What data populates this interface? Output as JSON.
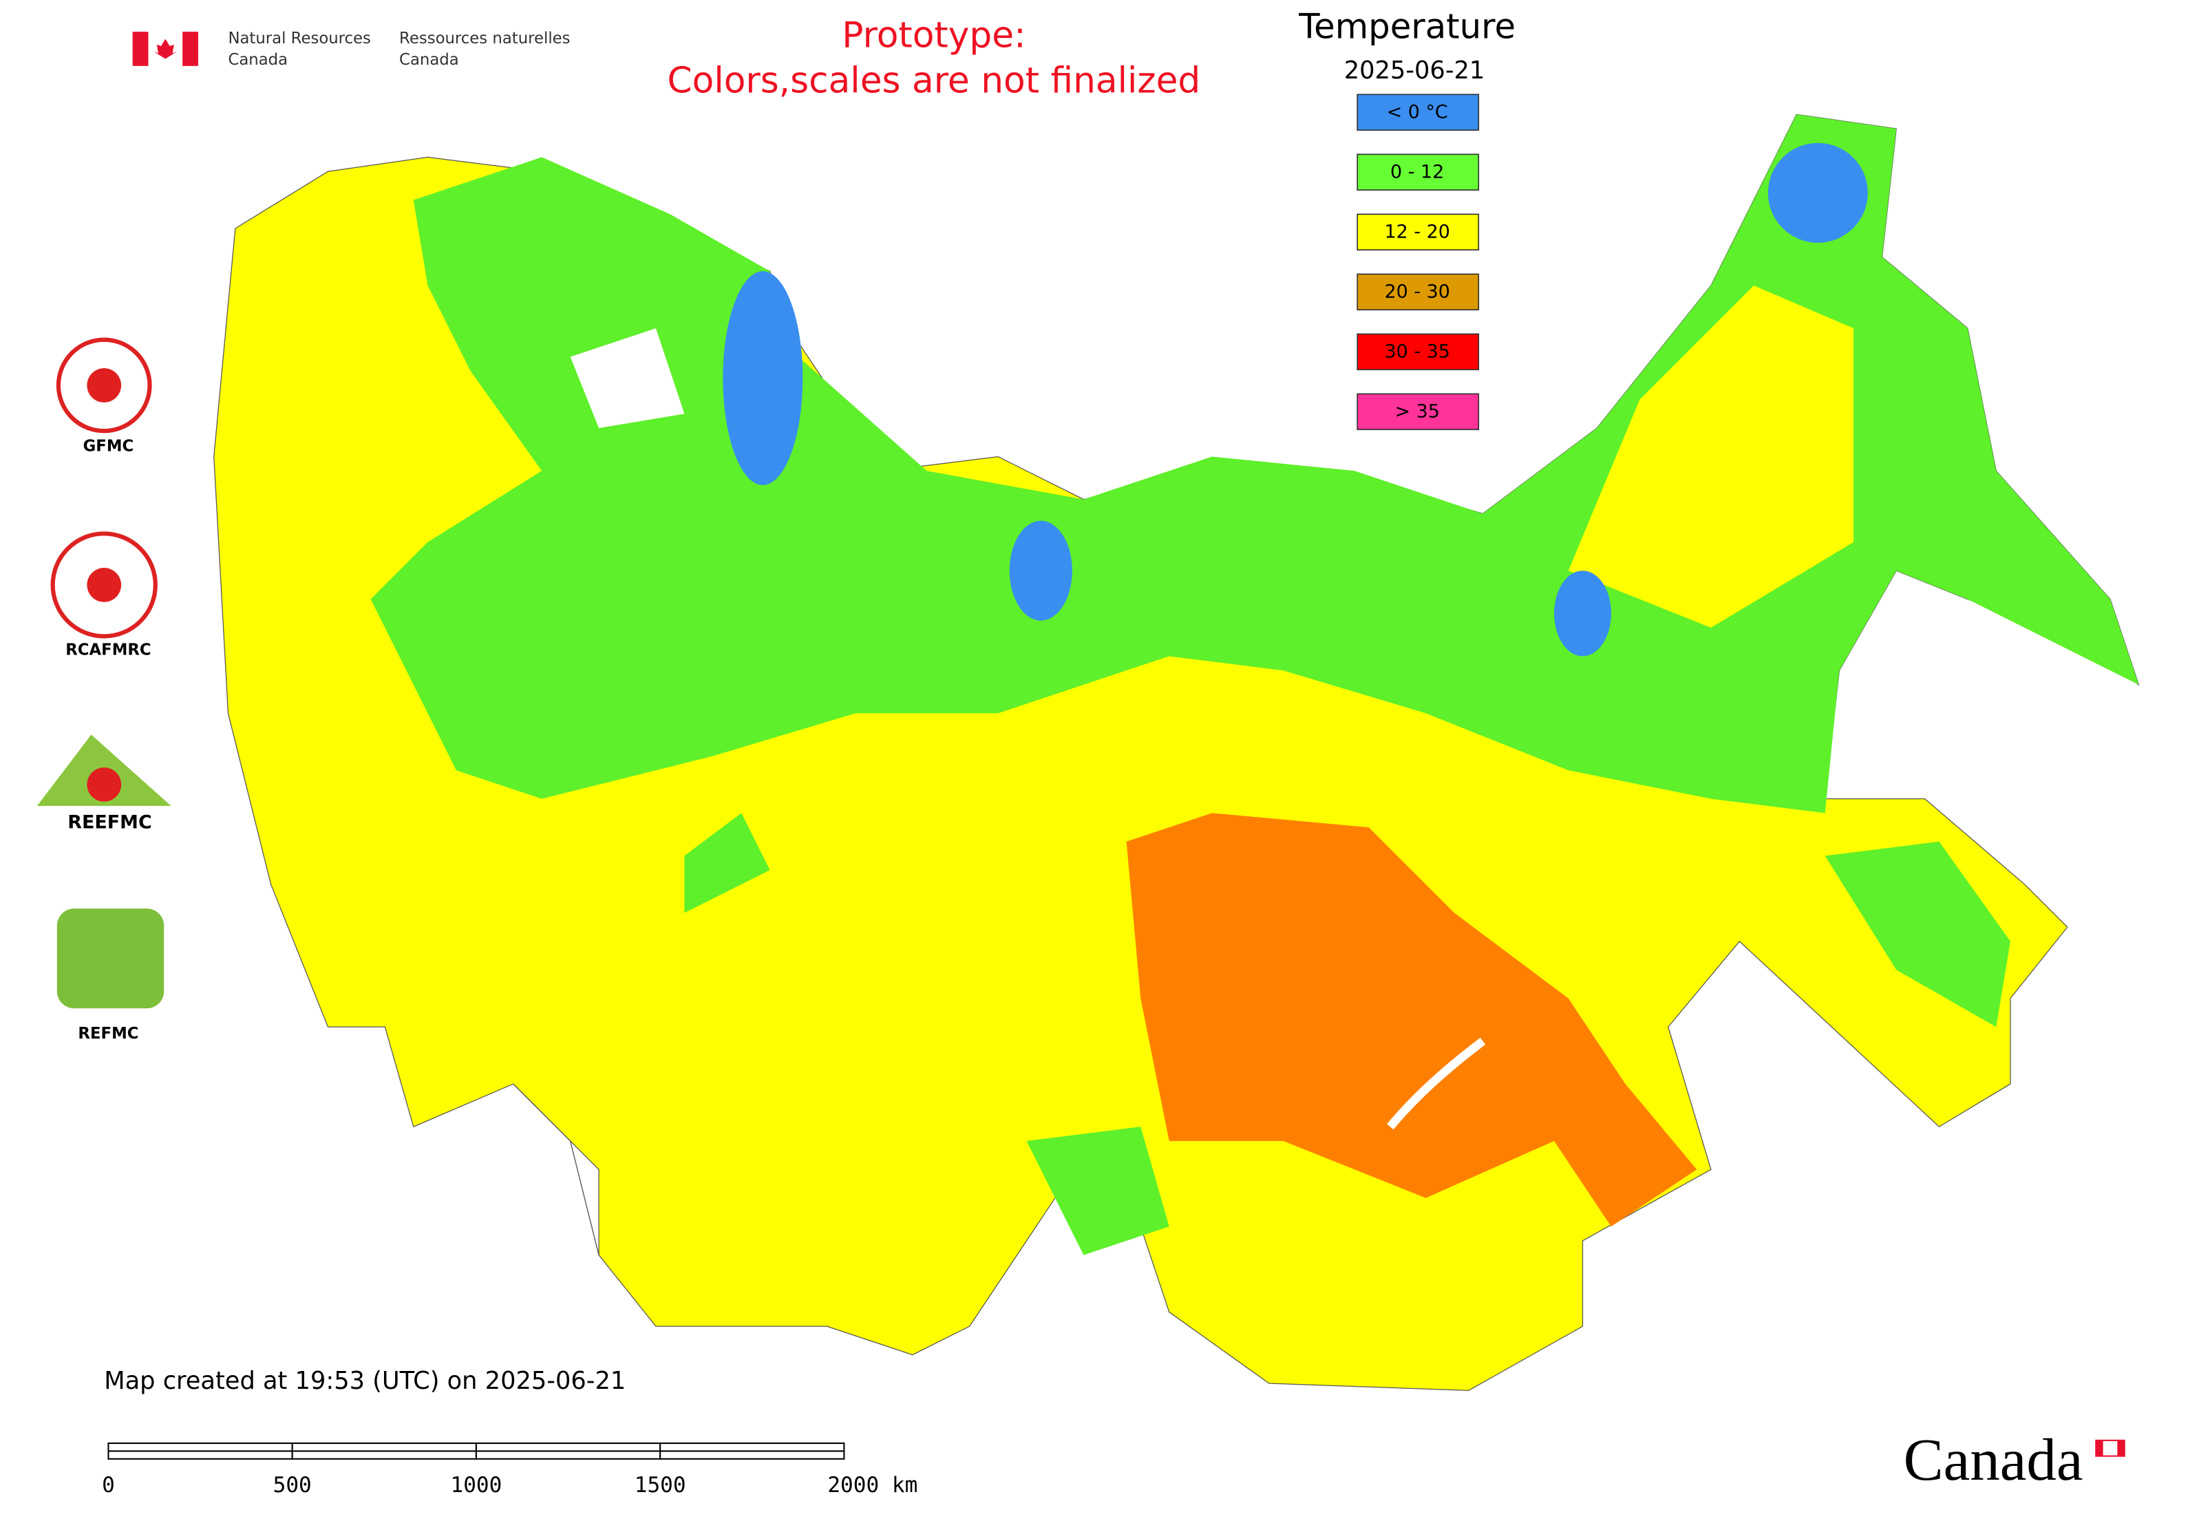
{
  "header": {
    "agency_en": [
      "Natural Resources",
      "Canada"
    ],
    "agency_fr": [
      "Ressources naturelles",
      "Canada"
    ],
    "notice": [
      "Prototype:",
      "Colors,scales are not finalized"
    ]
  },
  "legend": {
    "title": "Temperature",
    "date": "2025-06-21",
    "items": [
      {
        "label": "< 0 °C",
        "color": "#3a8ef0"
      },
      {
        "label": "0 - 12",
        "color": "#66ff33"
      },
      {
        "label": "12 - 20",
        "color": "#ffff00"
      },
      {
        "label": "20 - 30",
        "color": "#dc9a00"
      },
      {
        "label": "30 - 35",
        "color": "#ff0000"
      },
      {
        "label": "> 35",
        "color": "#ff3399"
      }
    ]
  },
  "logos": [
    "GFMC",
    "RCAFMRC",
    "REEFMC",
    "REFMC"
  ],
  "footer": {
    "created": "Map created at 19:53 (UTC) on 2025-06-21"
  },
  "scale_bar": {
    "labels": [
      "0",
      "500",
      "1000",
      "1500",
      "2000 km"
    ]
  },
  "wordmark": "Canada"
}
